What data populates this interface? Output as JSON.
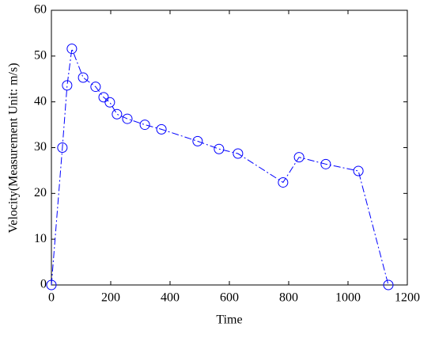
{
  "chart_data": {
    "type": "line",
    "xlabel": "Time",
    "ylabel": "Velocity(Measurement Unit: m/s)",
    "x": [
      0,
      37,
      53,
      69,
      107,
      149,
      176,
      197,
      221,
      256,
      315,
      371,
      493,
      565,
      629,
      781,
      835,
      925,
      1035,
      1136
    ],
    "series": [
      {
        "color": "#0000ff",
        "values": [
          0,
          30,
          43.6,
          51.6,
          45.3,
          43.3,
          41,
          39.9,
          37.3,
          36.3,
          35,
          34,
          31.4,
          29.7,
          28.7,
          22.4,
          27.9,
          26.4,
          24.9,
          0
        ]
      }
    ],
    "xlim": [
      0,
      1200
    ],
    "xticks": [
      0,
      200,
      400,
      600,
      800,
      1000,
      1200
    ],
    "ylim": [
      0,
      60
    ],
    "yticks": [
      0,
      10,
      20,
      30,
      40,
      50,
      60
    ],
    "grid": false
  }
}
